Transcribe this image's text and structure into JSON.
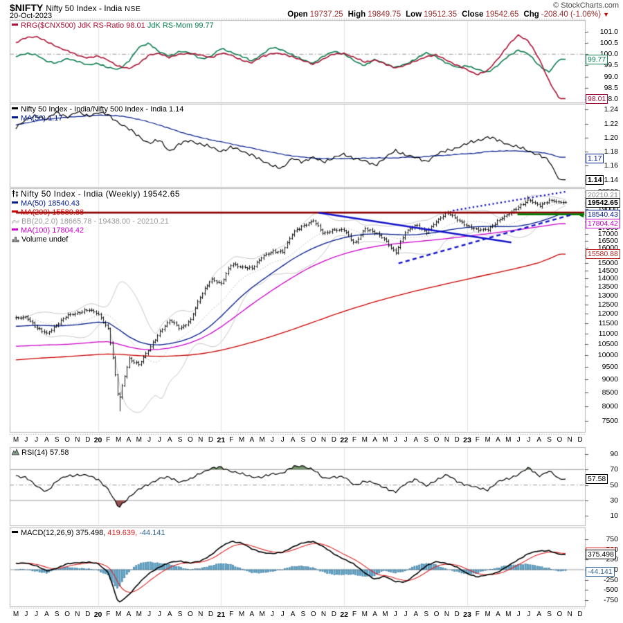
{
  "header": {
    "symbol": "$NIFTY",
    "name": "Nifty 50 Index - India",
    "exchange": "NSE",
    "date": "20-Oct-2023",
    "credit": "© StockCharts.com",
    "quote": [
      {
        "label": "Open",
        "value": "19737.25"
      },
      {
        "label": "High",
        "value": "19849.75"
      },
      {
        "label": "Low",
        "value": "19512.35"
      },
      {
        "label": "Close",
        "value": "19542.65"
      },
      {
        "label": "Chg",
        "value": "-208.40 (-1.06%)"
      }
    ],
    "change_direction": "down"
  },
  "legends": {
    "rrg_title": "RRG($CNX500)",
    "rrg_ratio": "JdK RS-Ratio 98.01",
    "rrg_mom": "JdK RS-Mom 99.77",
    "ratio_main": "Nifty 50 Index - India/Nifty 500 Index - India 1.14",
    "ratio_ma": "MA(50) 1.17",
    "price_title": "Nifty 50 Index - India (Weekly) 19542.65",
    "price_ma50": "MA(50) 18540.43",
    "price_ma200": "MA(200) 15580.88",
    "price_bb": "BB(20,2.0) 18665.78 - 19438.00 - 20210.21",
    "price_ma100": "MA(100) 17804.42",
    "price_vol": "Volume undef",
    "rsi": "RSI(14) 57.58",
    "macd_label": "MACD(12,26,9) 375.498,",
    "macd_signal": "419.639,",
    "macd_hist": "-44.141"
  },
  "colors": {
    "rrg_ratio": "#aa1133",
    "rrg_mom": "#0b7d4f",
    "ratio_line": "#000000",
    "ratio_ma": "#001a8c",
    "ma50": "#001a8c",
    "ma100": "#cc00cc",
    "ma200": "#cc0000",
    "bollinger": "#c9c9c9",
    "candle": "#000000",
    "hline_red": "#8b0000",
    "hline_green": "#007a00",
    "trendline_blue": "#1414cc",
    "rsi_line": "#000000",
    "rsi_over": "#74936c",
    "rsi_under": "#96524e",
    "macd_line": "#000000",
    "macd_signal": "#dd2222",
    "macd_hist_fill": "#5ea8cc",
    "quote_value": "#993333",
    "down_triangle": "#cc0000"
  },
  "x_axis": {
    "months": [
      "M",
      "J",
      "J",
      "A",
      "S",
      "O",
      "N",
      "D",
      "20",
      "F",
      "M",
      "A",
      "M",
      "J",
      "J",
      "A",
      "S",
      "O",
      "N",
      "D",
      "21",
      "F",
      "M",
      "A",
      "M",
      "J",
      "J",
      "A",
      "S",
      "O",
      "N",
      "D",
      "22",
      "F",
      "M",
      "A",
      "M",
      "J",
      "J",
      "A",
      "S",
      "O",
      "N",
      "D",
      "23",
      "F",
      "M",
      "A",
      "M",
      "J",
      "J",
      "A",
      "S",
      "O",
      "N",
      "D"
    ],
    "start": "May 2019",
    "end": "Dec 2023",
    "year_gridline_indices": [
      8,
      20,
      32,
      44
    ]
  },
  "axis_flags": [
    {
      "panel": "rrg",
      "value": 99.77,
      "text": "99.77",
      "color": "#0b7d4f",
      "bold": false
    },
    {
      "panel": "rrg",
      "value": 98.01,
      "text": "98.01",
      "color": "#9c1038",
      "bold": false
    },
    {
      "panel": "ratio",
      "value": 1.17,
      "text": "1.17",
      "color": "#001a8c",
      "bold": false
    },
    {
      "panel": "ratio",
      "value": 1.14,
      "text": "1.14",
      "color": "#000000",
      "bold": true
    },
    {
      "panel": "price",
      "value": 20210.21,
      "text": "20210.21",
      "color": "#888888",
      "bold": false
    },
    {
      "panel": "price",
      "value": 19542.65,
      "text": "19542.65",
      "color": "#000000",
      "bold": true
    },
    {
      "panel": "price",
      "value": 18560,
      "text": "",
      "color": "#007a00",
      "bold": false,
      "marker": true
    },
    {
      "panel": "price",
      "value": 18540.43,
      "text": "18540.43",
      "color": "#001a8c",
      "bold": false
    },
    {
      "panel": "price",
      "value": 17804.42,
      "text": "17804.42",
      "color": "#cc00cc",
      "bold": false
    },
    {
      "panel": "price",
      "value": 15580.88,
      "text": "15580.88",
      "color": "#b22222",
      "bold": false
    },
    {
      "panel": "rsi",
      "value": 57.58,
      "text": "57.58",
      "color": "#000000",
      "bold": false
    },
    {
      "panel": "macd",
      "value": 419.639,
      "text": "419.639",
      "color": "#dd2222",
      "bold": false,
      "behind": true
    },
    {
      "panel": "macd",
      "value": 375.498,
      "text": "375.498",
      "color": "#000000",
      "bold": false
    },
    {
      "panel": "macd",
      "value": -44.141,
      "text": "-44.141",
      "color": "#336699",
      "bold": false
    }
  ],
  "chart_data": [
    {
      "id": "rrg",
      "type": "line",
      "title": "RRG($CNX500)",
      "yticks": [
        "101.0",
        "100.5",
        "100.0",
        "99.5",
        "99.0",
        "98.5",
        "98.0"
      ],
      "ref_line": 100,
      "series": [
        {
          "name": "JdK RS-Ratio",
          "last": 98.01,
          "color": "#aa1133",
          "monthly": [
            100.5,
            100.75,
            100.8,
            100.55,
            100.35,
            100.15,
            99.95,
            99.85,
            99.9,
            99.75,
            99.45,
            99.35,
            99.6,
            99.95,
            100.05,
            99.85,
            100.0,
            100.05,
            99.95,
            99.85,
            100.05,
            99.95,
            99.75,
            99.6,
            99.9,
            100.05,
            100.0,
            99.9,
            99.7,
            99.55,
            99.8,
            100.0,
            100.05,
            99.85,
            99.65,
            99.75,
            99.55,
            99.4,
            99.5,
            99.7,
            99.9,
            99.95,
            99.75,
            99.5,
            99.3,
            99.1,
            99.25,
            99.8,
            100.4,
            100.85,
            100.6,
            99.8,
            98.8,
            98.01
          ]
        },
        {
          "name": "JdK RS-Mom",
          "last": 99.77,
          "color": "#0b7d4f",
          "monthly": [
            99.9,
            100.05,
            99.95,
            99.7,
            99.6,
            99.8,
            99.7,
            99.5,
            99.6,
            99.4,
            99.3,
            99.7,
            100.3,
            100.5,
            100.1,
            99.9,
            100.15,
            100.05,
            99.8,
            99.9,
            100.25,
            100.1,
            99.9,
            99.7,
            100.0,
            100.3,
            100.2,
            99.95,
            99.75,
            99.6,
            99.9,
            100.15,
            100.0,
            99.7,
            99.5,
            99.75,
            99.6,
            99.4,
            99.55,
            99.8,
            100.05,
            99.9,
            99.6,
            99.4,
            99.5,
            99.3,
            99.2,
            99.5,
            99.9,
            100.2,
            100.0,
            99.5,
            99.2,
            99.77
          ]
        }
      ]
    },
    {
      "id": "ratio",
      "type": "line",
      "title": "Nifty 50 Index - India/Nifty 500 Index - India",
      "yticks": [
        "1.24",
        "1.22",
        "1.20",
        "1.18",
        "1.16",
        "1.14"
      ],
      "series": [
        {
          "name": "Ratio",
          "last": 1.14,
          "color": "#000000",
          "monthly": [
            1.215,
            1.225,
            1.232,
            1.226,
            1.236,
            1.23,
            1.236,
            1.231,
            1.236,
            1.232,
            1.222,
            1.212,
            1.202,
            1.192,
            1.196,
            1.181,
            1.191,
            1.196,
            1.191,
            1.186,
            1.181,
            1.186,
            1.181,
            1.176,
            1.166,
            1.161,
            1.156,
            1.171,
            1.166,
            1.171,
            1.166,
            1.171,
            1.176,
            1.171,
            1.166,
            1.161,
            1.171,
            1.181,
            1.176,
            1.171,
            1.166,
            1.176,
            1.181,
            1.186,
            1.191,
            1.196,
            1.201,
            1.196,
            1.191,
            1.186,
            1.181,
            1.176,
            1.166,
            1.14
          ]
        },
        {
          "name": "MA(50)",
          "last": 1.17,
          "color": "#001a8c",
          "monthly": [
            1.218,
            1.221,
            1.224,
            1.226,
            1.228,
            1.229,
            1.23,
            1.231,
            1.232,
            1.232,
            1.231,
            1.229,
            1.226,
            1.222,
            1.218,
            1.213,
            1.208,
            1.204,
            1.2,
            1.197,
            1.194,
            1.191,
            1.188,
            1.185,
            1.182,
            1.179,
            1.176,
            1.174,
            1.172,
            1.171,
            1.17,
            1.17,
            1.17,
            1.17,
            1.171,
            1.171,
            1.171,
            1.171,
            1.172,
            1.172,
            1.173,
            1.174,
            1.175,
            1.176,
            1.177,
            1.178,
            1.18,
            1.181,
            1.181,
            1.181,
            1.18,
            1.179,
            1.177,
            1.172
          ]
        }
      ]
    },
    {
      "id": "price",
      "type": "candlestick",
      "title": "Nifty 50 Index - India (Weekly)",
      "last": 19542.65,
      "scale": "log",
      "yticks": [
        "20500",
        "20000",
        "19500",
        "19000",
        "18500",
        "18000",
        "17500",
        "17000",
        "16500",
        "16000",
        "15500",
        "15000",
        "14500",
        "14000",
        "13500",
        "13000",
        "12500",
        "12000",
        "11500",
        "11000",
        "10500",
        "10000",
        "9500",
        "9000",
        "8500",
        "8000",
        "7500"
      ],
      "monthly_close": [
        11750,
        11850,
        11250,
        11000,
        11450,
        11900,
        12050,
        12200,
        12000,
        11200,
        8100,
        9850,
        9580,
        10300,
        11070,
        11650,
        11250,
        11640,
        12970,
        13980,
        13635,
        14980,
        14690,
        14630,
        15440,
        15720,
        15760,
        17130,
        17620,
        18100,
        16980,
        17354,
        17340,
        16250,
        17465,
        17100,
        16580,
        15650,
        17160,
        17760,
        17090,
        18010,
        18750,
        18105,
        17660,
        17300,
        17360,
        18065,
        18530,
        19190,
        19750,
        19250,
        19750,
        19542
      ],
      "overlays": [
        {
          "name": "MA(50)",
          "last": 18540.43,
          "color": "#001a8c",
          "monthly": [
            11350,
            11380,
            11400,
            11390,
            11370,
            11390,
            11430,
            11500,
            11560,
            11540,
            11200,
            10850,
            10600,
            10480,
            10460,
            10520,
            10620,
            10780,
            11020,
            11380,
            11850,
            12400,
            12950,
            13450,
            13900,
            14350,
            14800,
            15250,
            15650,
            16000,
            16300,
            16550,
            16750,
            16900,
            17000,
            17030,
            17020,
            16980,
            16950,
            16970,
            17050,
            17150,
            17300,
            17420,
            17520,
            17580,
            17600,
            17590,
            17580,
            17620,
            17760,
            17960,
            18220,
            18540
          ]
        },
        {
          "name": "MA(100)",
          "last": 17804.42,
          "color": "#cc00cc",
          "monthly": [
            10400,
            10420,
            10440,
            10460,
            10470,
            10490,
            10520,
            10560,
            10600,
            10610,
            10500,
            10370,
            10280,
            10240,
            10260,
            10320,
            10420,
            10560,
            10750,
            11000,
            11320,
            11690,
            12090,
            12500,
            12900,
            13300,
            13690,
            14080,
            14460,
            14800,
            15100,
            15370,
            15600,
            15800,
            15970,
            16110,
            16220,
            16310,
            16390,
            16460,
            16530,
            16600,
            16680,
            16770,
            16860,
            16950,
            17040,
            17140,
            17240,
            17350,
            17460,
            17570,
            17690,
            17804
          ]
        },
        {
          "name": "MA(200)",
          "last": 15580.88,
          "color": "#cc0000",
          "monthly": [
            9800,
            9830,
            9860,
            9890,
            9910,
            9940,
            9970,
            10000,
            10030,
            10050,
            10040,
            10010,
            9980,
            9960,
            9950,
            9960,
            9980,
            10010,
            10060,
            10130,
            10220,
            10330,
            10450,
            10580,
            10720,
            10870,
            11030,
            11200,
            11380,
            11560,
            11750,
            11940,
            12120,
            12300,
            12470,
            12640,
            12800,
            12960,
            13110,
            13260,
            13400,
            13540,
            13680,
            13820,
            13960,
            14100,
            14240,
            14380,
            14520,
            14670,
            14830,
            15010,
            15270,
            15580
          ]
        }
      ],
      "bollinger": {
        "period": 20,
        "stdev": 2.0,
        "values_text": "18665.78 - 19438.00 - 20210.21",
        "color": "#c9c9c9"
      },
      "volume": "undef",
      "annotations": {
        "hlines": [
          {
            "value": 18700,
            "color": "#8b0000",
            "start_month": 0,
            "end_month": 55.5
          },
          {
            "value": 18560,
            "color": "#007a00",
            "start_month": 48.9,
            "end_month": 55.5
          }
        ],
        "trendlines": [
          {
            "from_month": 29.5,
            "from_value": 18695,
            "to_month": 48.3,
            "to_value": 16404,
            "style": "solid"
          },
          {
            "from_month": 37.3,
            "from_value": 14965,
            "to_month": 54.2,
            "to_value": 18534,
            "style": "dashed"
          },
          {
            "from_month": 42.6,
            "from_value": 18866,
            "to_month": 53.6,
            "to_value": 20494,
            "style": "dotted"
          }
        ],
        "color": "#1414cc"
      }
    },
    {
      "id": "rsi",
      "type": "line",
      "title": "RSI(14)",
      "last": 57.58,
      "yticks": [
        "90",
        "70",
        "50",
        "30",
        "10"
      ],
      "bands": {
        "upper": 70,
        "mid": 50,
        "lower": 30
      },
      "monthly": [
        62,
        60,
        48,
        42,
        55,
        62,
        63,
        62,
        58,
        44,
        21,
        34,
        44,
        52,
        58,
        60,
        54,
        57,
        66,
        71,
        73,
        68,
        64,
        61,
        60,
        64,
        66,
        73,
        75,
        70,
        58,
        61,
        60,
        50,
        55,
        52,
        47,
        40,
        52,
        58,
        48,
        57,
        63,
        55,
        50,
        46,
        44,
        54,
        58,
        64,
        72,
        62,
        68,
        57.58
      ]
    },
    {
      "id": "macd",
      "type": "line+histogram",
      "title": "MACD(12,26,9)",
      "last": {
        "macd": 375.498,
        "signal": 419.639,
        "histogram": -44.141
      },
      "yticks": [
        "750",
        "500",
        "250",
        "0",
        "-250",
        "-500",
        "-750"
      ],
      "monthly_macd": [
        150,
        170,
        90,
        -30,
        40,
        140,
        175,
        185,
        150,
        -60,
        -830,
        -620,
        -330,
        -90,
        70,
        175,
        215,
        165,
        210,
        360,
        560,
        700,
        660,
        510,
        430,
        390,
        430,
        560,
        660,
        700,
        560,
        390,
        260,
        130,
        -70,
        -240,
        -160,
        -290,
        -310,
        -110,
        90,
        200,
        160,
        60,
        -90,
        -180,
        -130,
        -60,
        90,
        250,
        400,
        460,
        470,
        375
      ]
    }
  ]
}
